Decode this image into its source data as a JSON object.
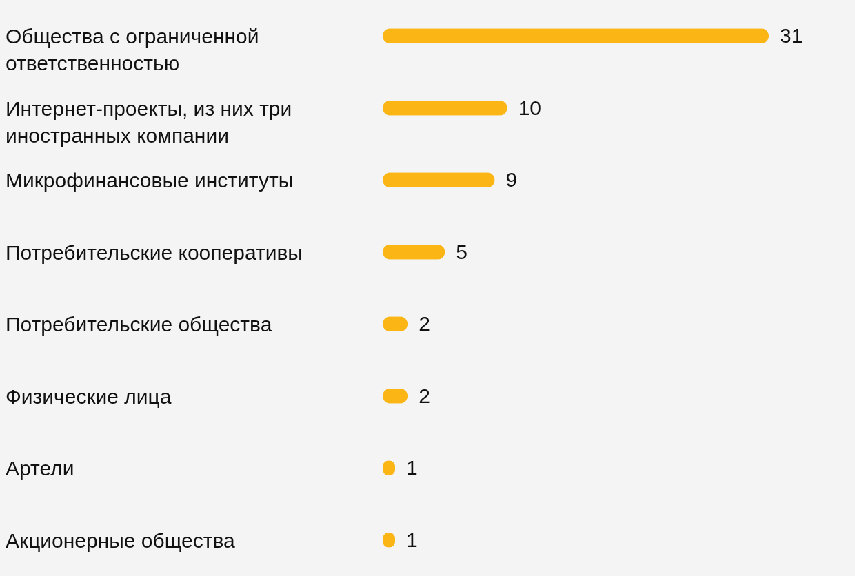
{
  "chart_data": {
    "type": "bar",
    "orientation": "horizontal",
    "categories": [
      "Общества с ограниченной ответственностью",
      "Интернет-проекты, из них три иностранных компании",
      "Микрофинансовые институты",
      "Потребительские кооперативы",
      "Потребительские общества",
      "Физические лица",
      "Артели",
      "Акционерные общества"
    ],
    "values": [
      31,
      10,
      9,
      5,
      2,
      2,
      1,
      1
    ],
    "color": "#fbb616",
    "data_labels": true
  }
}
